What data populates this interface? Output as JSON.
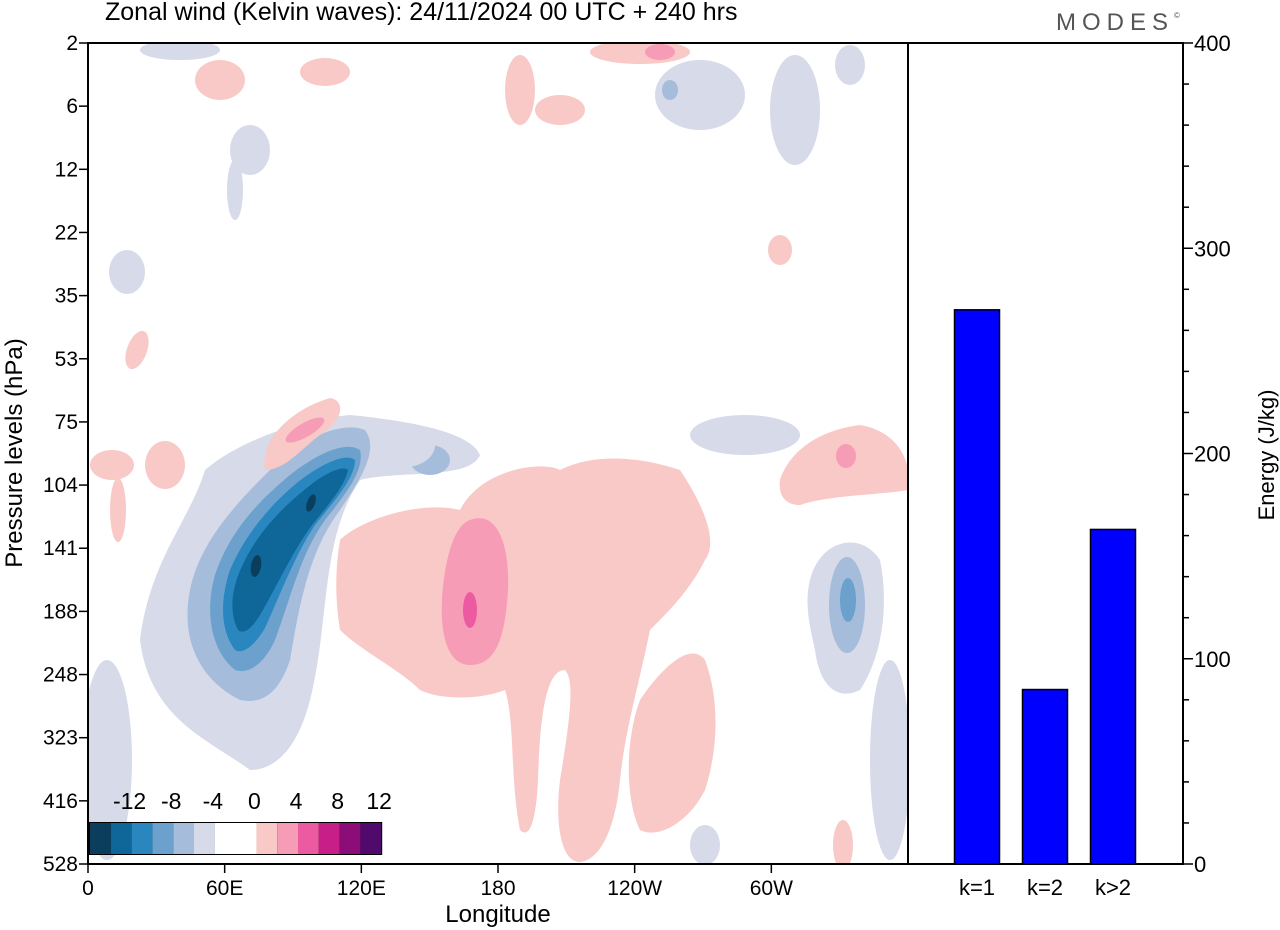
{
  "title": "Zonal wind (Kelvin waves):  24/11/2024  00 UTC  + 240 hrs",
  "brand": "MODES",
  "brand_mark": "©",
  "colors": {
    "bar": "#0000ff",
    "neg": [
      "#0b3d5c",
      "#0e6699",
      "#2a86bf",
      "#6ba1cc",
      "#a6bcdb",
      "#d6dae9"
    ],
    "zero": "#ffffff",
    "pos": [
      "#f8c9c6",
      "#f79cb6",
      "#ec5ba1",
      "#c81e87",
      "#8c0d78",
      "#4f0a6b"
    ]
  },
  "chart_data": [
    {
      "type": "heatmap",
      "title": "Zonal wind (Kelvin waves):  24/11/2024  00 UTC  + 240 hrs",
      "xlabel": "Longitude",
      "ylabel": "Pressure levels (hPa)",
      "x_ticks": [
        "0",
        "60E",
        "120E",
        "180",
        "120W",
        "60W"
      ],
      "y_ticks": [
        "2",
        "6",
        "12",
        "22",
        "35",
        "53",
        "75",
        "104",
        "141",
        "188",
        "248",
        "323",
        "416",
        "528"
      ],
      "colorbar_labels": [
        "-12",
        "-8",
        "-4",
        "0",
        "4",
        "8",
        "12"
      ],
      "contour_levels": [
        -14,
        -12,
        -10,
        -8,
        -6,
        -4,
        -2,
        2,
        4,
        6,
        8,
        10,
        12,
        14
      ],
      "features": [
        {
          "lon": 95,
          "level": "141",
          "min": -13,
          "note": "tilted negative anomaly 60E-120E"
        },
        {
          "lon": 170,
          "level": "188",
          "max": 9,
          "note": "positive anomaly near dateline"
        },
        {
          "lon": 325,
          "level": "188",
          "min": -7
        },
        {
          "lon": 300,
          "level": "104",
          "max": 5
        }
      ]
    },
    {
      "type": "bar",
      "categories": [
        "k=1",
        "k=2",
        "k>2"
      ],
      "values": [
        270,
        85,
        163
      ],
      "ylabel": "Energy (J/kg)",
      "ylim": [
        0,
        400
      ],
      "y_ticks": [
        0,
        100,
        200,
        300,
        400
      ]
    }
  ]
}
